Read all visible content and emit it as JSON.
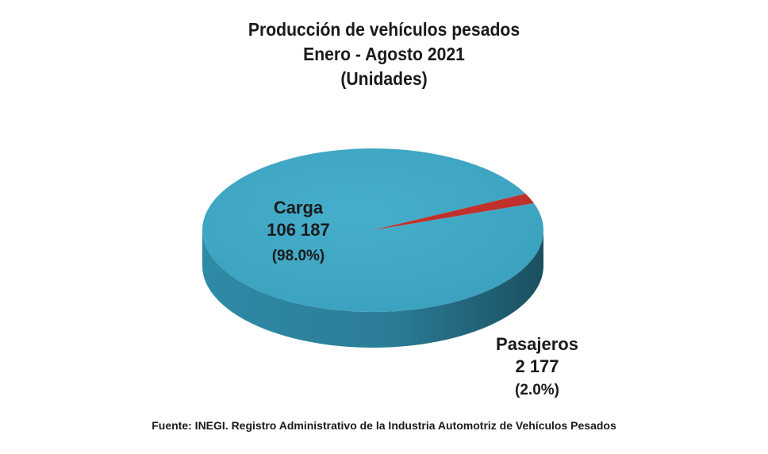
{
  "chart_data": {
    "type": "pie",
    "title": "Producción de vehículos pesados",
    "subtitle": "Enero - Agosto 2021",
    "units": "(Unidades)",
    "slices": [
      {
        "name": "Carga",
        "value_label": "106 187",
        "value": 106187,
        "percent_label": "(98.0%)",
        "percent": 98.0,
        "color": "#3ea7c4",
        "side_color": "#2d7d96"
      },
      {
        "name": "Pasajeros",
        "value_label": "2 177",
        "value": 2177,
        "percent_label": "(2.0%)",
        "percent": 2.0,
        "color": "#c0312b",
        "side_color": "#5a1512"
      }
    ],
    "source": "Fuente: INEGI. Registro Administrativo de la Industria Automotriz de Vehículos Pesados"
  }
}
